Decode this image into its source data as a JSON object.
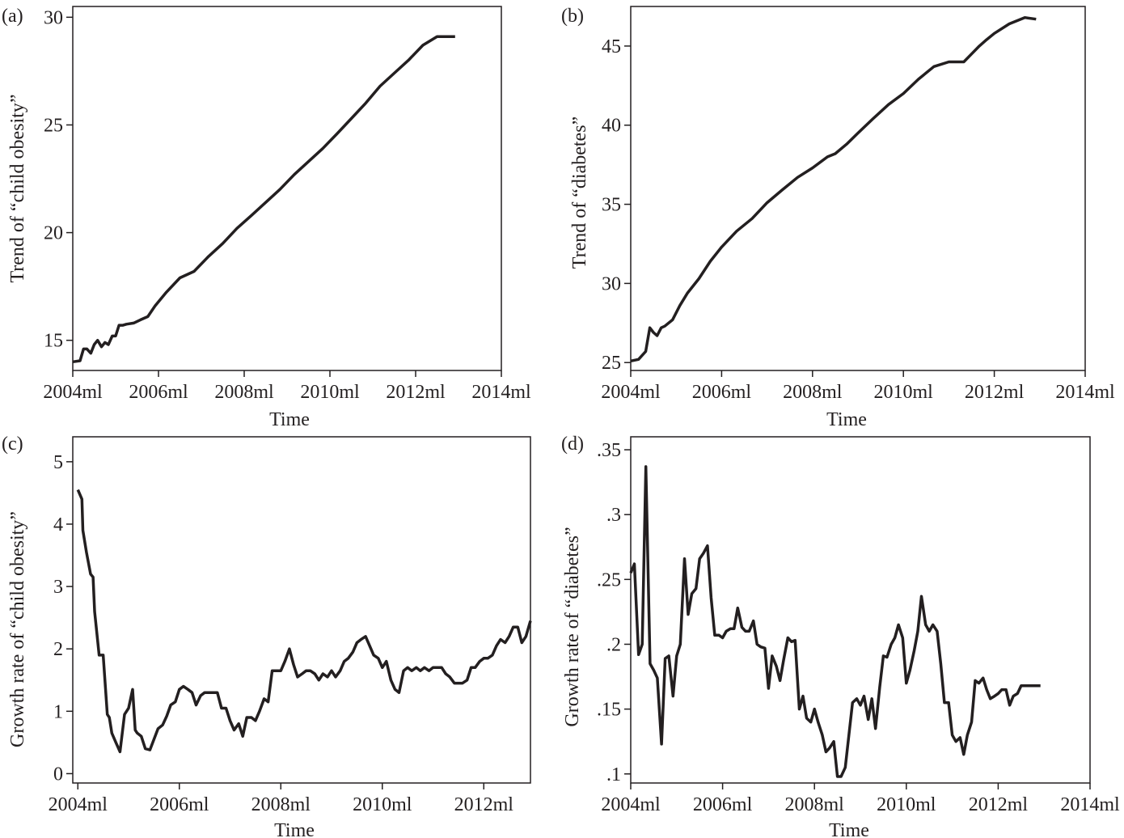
{
  "chart_data": [
    {
      "panel_label": "(a)",
      "type": "line",
      "xlabel": "Time",
      "ylabel": "Trend of “child obesity”",
      "xlim": [
        2004.0,
        2014.0
      ],
      "ylim": [
        13.6,
        30.5
      ],
      "xticks": [
        {
          "value": 2004,
          "label": "2004ml"
        },
        {
          "value": 2006,
          "label": "2006ml"
        },
        {
          "value": 2008,
          "label": "2008ml"
        },
        {
          "value": 2010,
          "label": "2010ml"
        },
        {
          "value": 2012,
          "label": "2012ml"
        },
        {
          "value": 2014,
          "label": "2014ml"
        }
      ],
      "yticks": [
        {
          "value": 15,
          "label": "15"
        },
        {
          "value": 20,
          "label": "20"
        },
        {
          "value": 25,
          "label": "25"
        },
        {
          "value": 30,
          "label": "30"
        }
      ],
      "series": [
        {
          "x": [
            2004.0,
            2004.17,
            2004.25,
            2004.33,
            2004.42,
            2004.5,
            2004.58,
            2004.67,
            2004.75,
            2004.83,
            2004.92,
            2005.0,
            2005.08,
            2005.17,
            2005.25,
            2005.42,
            2005.58,
            2005.75,
            2005.92,
            2006.17,
            2006.5,
            2006.83,
            2007.17,
            2007.5,
            2007.83,
            2008.17,
            2008.5,
            2008.83,
            2009.17,
            2009.5,
            2009.83,
            2010.17,
            2010.5,
            2010.83,
            2011.17,
            2011.5,
            2011.83,
            2012.17,
            2012.5,
            2012.83,
            2012.92
          ],
          "y": [
            14.0,
            14.05,
            14.6,
            14.6,
            14.4,
            14.8,
            15.0,
            14.7,
            14.9,
            14.8,
            15.2,
            15.2,
            15.7,
            15.7,
            15.75,
            15.8,
            15.95,
            16.1,
            16.6,
            17.2,
            17.9,
            18.2,
            18.9,
            19.5,
            20.2,
            20.8,
            21.4,
            22.0,
            22.7,
            23.3,
            23.9,
            24.6,
            25.3,
            26.0,
            26.8,
            27.4,
            28.0,
            28.7,
            29.1,
            29.1,
            29.1
          ]
        }
      ]
    },
    {
      "panel_label": "(b)",
      "type": "line",
      "xlabel": "Time",
      "ylabel": "Trend of “diabetes”",
      "xlim": [
        2004.0,
        2014.0
      ],
      "ylim": [
        24.5,
        47.5
      ],
      "xticks": [
        {
          "value": 2004,
          "label": "2004ml"
        },
        {
          "value": 2006,
          "label": "2006ml"
        },
        {
          "value": 2008,
          "label": "2008ml"
        },
        {
          "value": 2010,
          "label": "2010ml"
        },
        {
          "value": 2012,
          "label": "2012ml"
        },
        {
          "value": 2014,
          "label": "2014ml"
        }
      ],
      "yticks": [
        {
          "value": 25,
          "label": "25"
        },
        {
          "value": 30,
          "label": "30"
        },
        {
          "value": 35,
          "label": "35"
        },
        {
          "value": 40,
          "label": "40"
        },
        {
          "value": 45,
          "label": "45"
        }
      ],
      "series": [
        {
          "x": [
            2004.0,
            2004.17,
            2004.33,
            2004.42,
            2004.5,
            2004.58,
            2004.67,
            2004.75,
            2004.92,
            2005.08,
            2005.25,
            2005.5,
            2005.75,
            2006.0,
            2006.33,
            2006.67,
            2007.0,
            2007.33,
            2007.67,
            2008.0,
            2008.33,
            2008.5,
            2008.75,
            2009.0,
            2009.33,
            2009.67,
            2010.0,
            2010.33,
            2010.67,
            2011.0,
            2011.33,
            2011.5,
            2011.67,
            2011.83,
            2012.0,
            2012.33,
            2012.67,
            2012.92
          ],
          "y": [
            25.1,
            25.2,
            25.7,
            27.2,
            26.9,
            26.7,
            27.2,
            27.3,
            27.7,
            28.6,
            29.4,
            30.3,
            31.4,
            32.3,
            33.3,
            34.1,
            35.1,
            35.9,
            36.7,
            37.3,
            38.0,
            38.2,
            38.8,
            39.5,
            40.4,
            41.3,
            42.0,
            42.9,
            43.7,
            44.0,
            44.0,
            44.5,
            45.0,
            45.4,
            45.8,
            46.4,
            46.8,
            46.7
          ]
        }
      ]
    },
    {
      "panel_label": "(c)",
      "type": "line",
      "xlabel": "Time",
      "ylabel": "Growth rate of “child obesity”",
      "xlim": [
        2003.9,
        2012.92
      ],
      "ylim": [
        -0.15,
        5.4
      ],
      "xticks": [
        {
          "value": 2004,
          "label": "2004ml"
        },
        {
          "value": 2006,
          "label": "2006ml"
        },
        {
          "value": 2008,
          "label": "2008ml"
        },
        {
          "value": 2010,
          "label": "2010ml"
        },
        {
          "value": 2012,
          "label": "2012ml"
        }
      ],
      "yticks": [
        {
          "value": 0,
          "label": "0"
        },
        {
          "value": 1,
          "label": "1"
        },
        {
          "value": 2,
          "label": "2"
        },
        {
          "value": 3,
          "label": "3"
        },
        {
          "value": 4,
          "label": "4"
        },
        {
          "value": 5,
          "label": "5"
        }
      ],
      "series": [
        {
          "x": [
            2004.0,
            2004.08,
            2004.1,
            2004.17,
            2004.25,
            2004.3,
            2004.33,
            2004.42,
            2004.5,
            2004.58,
            2004.62,
            2004.67,
            2004.75,
            2004.83,
            2004.92,
            2005.0,
            2005.08,
            2005.13,
            2005.17,
            2005.25,
            2005.33,
            2005.42,
            2005.5,
            2005.58,
            2005.67,
            2005.75,
            2005.83,
            2005.92,
            2006.0,
            2006.08,
            2006.17,
            2006.25,
            2006.33,
            2006.42,
            2006.5,
            2006.58,
            2006.67,
            2006.75,
            2006.83,
            2006.92,
            2007.0,
            2007.08,
            2007.17,
            2007.25,
            2007.33,
            2007.42,
            2007.5,
            2007.58,
            2007.67,
            2007.75,
            2007.83,
            2008.0,
            2008.08,
            2008.17,
            2008.25,
            2008.33,
            2008.42,
            2008.5,
            2008.58,
            2008.67,
            2008.75,
            2008.83,
            2008.92,
            2009.0,
            2009.08,
            2009.17,
            2009.25,
            2009.33,
            2009.42,
            2009.5,
            2009.58,
            2009.67,
            2009.75,
            2009.83,
            2009.92,
            2010.0,
            2010.08,
            2010.17,
            2010.25,
            2010.33,
            2010.42,
            2010.5,
            2010.58,
            2010.67,
            2010.75,
            2010.83,
            2010.92,
            2011.0,
            2011.08,
            2011.17,
            2011.25,
            2011.33,
            2011.42,
            2011.5,
            2011.58,
            2011.67,
            2011.75,
            2011.83,
            2011.92,
            2012.0,
            2012.08,
            2012.17,
            2012.25,
            2012.33,
            2012.42,
            2012.5,
            2012.58,
            2012.67,
            2012.75,
            2012.83,
            2012.92
          ],
          "y": [
            4.55,
            4.4,
            3.9,
            3.55,
            3.2,
            3.15,
            2.6,
            1.9,
            1.9,
            0.95,
            0.9,
            0.65,
            0.5,
            0.35,
            0.95,
            1.05,
            1.35,
            0.7,
            0.65,
            0.6,
            0.4,
            0.38,
            0.55,
            0.72,
            0.78,
            0.92,
            1.1,
            1.15,
            1.35,
            1.4,
            1.35,
            1.3,
            1.1,
            1.25,
            1.3,
            1.3,
            1.3,
            1.3,
            1.05,
            1.05,
            0.85,
            0.7,
            0.8,
            0.6,
            0.9,
            0.9,
            0.85,
            1.0,
            1.2,
            1.15,
            1.65,
            1.65,
            1.8,
            2.0,
            1.75,
            1.55,
            1.6,
            1.65,
            1.65,
            1.6,
            1.5,
            1.6,
            1.55,
            1.65,
            1.55,
            1.65,
            1.8,
            1.85,
            1.95,
            2.1,
            2.15,
            2.2,
            2.05,
            1.9,
            1.85,
            1.7,
            1.8,
            1.5,
            1.35,
            1.3,
            1.65,
            1.7,
            1.65,
            1.7,
            1.65,
            1.7,
            1.65,
            1.7,
            1.7,
            1.7,
            1.6,
            1.55,
            1.45,
            1.45,
            1.45,
            1.5,
            1.7,
            1.7,
            1.8,
            1.85,
            1.85,
            1.9,
            2.05,
            2.15,
            2.1,
            2.2,
            2.35,
            2.35,
            2.1,
            2.2,
            2.45
          ]
        }
      ]
    },
    {
      "panel_label": "(d)",
      "type": "line",
      "xlabel": "Time",
      "ylabel": "Growth rate of “diabetes”",
      "xlim": [
        2004.0,
        2014.0
      ],
      "ylim": [
        0.093,
        0.36
      ],
      "xticks": [
        {
          "value": 2004,
          "label": "2004ml"
        },
        {
          "value": 2006,
          "label": "2006ml"
        },
        {
          "value": 2008,
          "label": "2008ml"
        },
        {
          "value": 2010,
          "label": "2010ml"
        },
        {
          "value": 2012,
          "label": "2012ml"
        },
        {
          "value": 2014,
          "label": "2014ml"
        }
      ],
      "yticks": [
        {
          "value": 0.1,
          "label": ".1"
        },
        {
          "value": 0.15,
          "label": ".15"
        },
        {
          "value": 0.2,
          "label": ".2"
        },
        {
          "value": 0.25,
          "label": ".25"
        },
        {
          "value": 0.3,
          "label": ".3"
        },
        {
          "value": 0.35,
          "label": ".35"
        }
      ],
      "series": [
        {
          "x": [
            2004.0,
            2004.08,
            2004.17,
            2004.25,
            2004.33,
            2004.42,
            2004.5,
            2004.58,
            2004.67,
            2004.75,
            2004.83,
            2004.92,
            2005.0,
            2005.08,
            2005.17,
            2005.25,
            2005.33,
            2005.42,
            2005.5,
            2005.58,
            2005.67,
            2005.75,
            2005.83,
            2005.92,
            2006.0,
            2006.08,
            2006.17,
            2006.25,
            2006.33,
            2006.42,
            2006.5,
            2006.58,
            2006.67,
            2006.75,
            2006.83,
            2006.92,
            2007.0,
            2007.08,
            2007.17,
            2007.25,
            2007.33,
            2007.42,
            2007.5,
            2007.58,
            2007.67,
            2007.75,
            2007.83,
            2007.92,
            2008.0,
            2008.08,
            2008.17,
            2008.25,
            2008.33,
            2008.42,
            2008.5,
            2008.58,
            2008.67,
            2008.75,
            2008.83,
            2008.92,
            2009.0,
            2009.08,
            2009.17,
            2009.25,
            2009.33,
            2009.42,
            2009.5,
            2009.58,
            2009.67,
            2009.75,
            2009.83,
            2009.92,
            2010.0,
            2010.08,
            2010.17,
            2010.25,
            2010.33,
            2010.42,
            2010.5,
            2010.58,
            2010.67,
            2010.75,
            2010.83,
            2010.92,
            2011.0,
            2011.08,
            2011.17,
            2011.25,
            2011.33,
            2011.42,
            2011.5,
            2011.58,
            2011.67,
            2011.75,
            2011.83,
            2011.92,
            2012.0,
            2012.08,
            2012.17,
            2012.25,
            2012.33,
            2012.42,
            2012.5,
            2012.58,
            2012.67,
            2012.75,
            2012.83,
            2012.92
          ],
          "y": [
            0.255,
            0.262,
            0.192,
            0.2,
            0.337,
            0.185,
            0.18,
            0.174,
            0.123,
            0.189,
            0.191,
            0.16,
            0.191,
            0.2,
            0.266,
            0.223,
            0.239,
            0.243,
            0.266,
            0.27,
            0.276,
            0.236,
            0.207,
            0.207,
            0.205,
            0.21,
            0.212,
            0.212,
            0.228,
            0.213,
            0.21,
            0.21,
            0.218,
            0.2,
            0.198,
            0.197,
            0.166,
            0.191,
            0.183,
            0.172,
            0.188,
            0.205,
            0.202,
            0.203,
            0.15,
            0.16,
            0.143,
            0.14,
            0.15,
            0.14,
            0.13,
            0.117,
            0.12,
            0.125,
            0.098,
            0.098,
            0.105,
            0.13,
            0.155,
            0.158,
            0.153,
            0.16,
            0.142,
            0.158,
            0.135,
            0.167,
            0.191,
            0.19,
            0.2,
            0.205,
            0.215,
            0.205,
            0.17,
            0.18,
            0.195,
            0.21,
            0.237,
            0.215,
            0.21,
            0.215,
            0.21,
            0.185,
            0.155,
            0.155,
            0.13,
            0.125,
            0.128,
            0.115,
            0.13,
            0.14,
            0.172,
            0.17,
            0.174,
            0.165,
            0.158,
            0.16,
            0.162,
            0.165,
            0.165,
            0.153,
            0.16,
            0.162,
            0.168,
            0.168,
            0.168,
            0.168,
            0.168,
            0.168
          ]
        }
      ]
    }
  ]
}
